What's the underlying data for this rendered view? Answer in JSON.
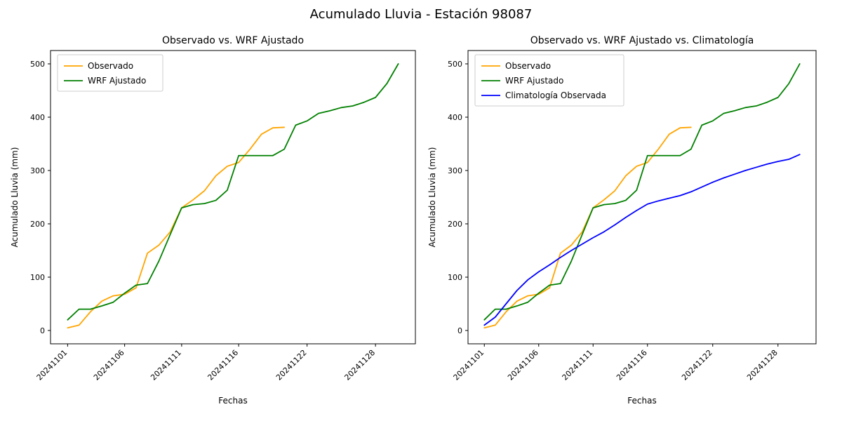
{
  "figure": {
    "suptitle": "Acumulado Lluvia - Estación 98087",
    "background_color": "#ffffff"
  },
  "chart_data": [
    {
      "type": "line",
      "title": "Observado vs. WRF Ajustado",
      "xlabel": "Fechas",
      "ylabel": "Acumulado Lluvia (mm)",
      "grid": false,
      "legend_position": "upper-left",
      "xlim": [
        -0.5,
        31.5
      ],
      "ylim": [
        -25,
        525
      ],
      "yticks": [
        0,
        100,
        200,
        300,
        400,
        500
      ],
      "xticks": [
        1,
        6,
        11,
        16,
        22,
        28
      ],
      "xtick_labels": [
        "20241101",
        "20241106",
        "20241111",
        "20241116",
        "20241122",
        "20241128"
      ],
      "series": [
        {
          "name": "Observado",
          "color": "#FFA500",
          "x": [
            1,
            2,
            3,
            4,
            5,
            6,
            7,
            8,
            9,
            10,
            11,
            12,
            13,
            14,
            15,
            16,
            17,
            18,
            19,
            20
          ],
          "y": [
            5,
            10,
            35,
            55,
            65,
            68,
            80,
            145,
            160,
            185,
            230,
            245,
            262,
            290,
            308,
            315,
            340,
            368,
            380,
            381
          ]
        },
        {
          "name": "WRF Ajustado",
          "color": "#008000",
          "x": [
            1,
            2,
            3,
            4,
            5,
            6,
            7,
            8,
            9,
            10,
            11,
            12,
            13,
            14,
            15,
            16,
            17,
            18,
            19,
            20,
            21,
            22,
            23,
            24,
            25,
            26,
            27,
            28,
            29,
            30
          ],
          "y": [
            20,
            40,
            40,
            46,
            53,
            70,
            85,
            88,
            130,
            180,
            230,
            236,
            238,
            244,
            263,
            328,
            328,
            328,
            328,
            340,
            385,
            393,
            407,
            412,
            418,
            421,
            428,
            437,
            463,
            500
          ]
        }
      ]
    },
    {
      "type": "line",
      "title": "Observado vs. WRF Ajustado vs. Climatología",
      "xlabel": "Fechas",
      "ylabel": "Acumulado Lluvia (mm)",
      "grid": false,
      "legend_position": "upper-left",
      "xlim": [
        -0.5,
        31.5
      ],
      "ylim": [
        -25,
        525
      ],
      "yticks": [
        0,
        100,
        200,
        300,
        400,
        500
      ],
      "xticks": [
        1,
        6,
        11,
        16,
        22,
        28
      ],
      "xtick_labels": [
        "20241101",
        "20241106",
        "20241111",
        "20241116",
        "20241122",
        "20241128"
      ],
      "series": [
        {
          "name": "Observado",
          "color": "#FFA500",
          "x": [
            1,
            2,
            3,
            4,
            5,
            6,
            7,
            8,
            9,
            10,
            11,
            12,
            13,
            14,
            15,
            16,
            17,
            18,
            19,
            20
          ],
          "y": [
            5,
            10,
            35,
            55,
            65,
            68,
            80,
            145,
            160,
            185,
            230,
            245,
            262,
            290,
            308,
            315,
            340,
            368,
            380,
            381
          ]
        },
        {
          "name": "WRF Ajustado",
          "color": "#008000",
          "x": [
            1,
            2,
            3,
            4,
            5,
            6,
            7,
            8,
            9,
            10,
            11,
            12,
            13,
            14,
            15,
            16,
            17,
            18,
            19,
            20,
            21,
            22,
            23,
            24,
            25,
            26,
            27,
            28,
            29,
            30
          ],
          "y": [
            20,
            40,
            40,
            46,
            53,
            70,
            85,
            88,
            130,
            180,
            230,
            236,
            238,
            244,
            263,
            328,
            328,
            328,
            328,
            340,
            385,
            393,
            407,
            412,
            418,
            421,
            428,
            437,
            463,
            500
          ]
        },
        {
          "name": "Climatología Observada",
          "color": "#0000FF",
          "x": [
            1,
            2,
            3,
            4,
            5,
            6,
            7,
            8,
            9,
            10,
            11,
            12,
            13,
            14,
            15,
            16,
            17,
            18,
            19,
            20,
            21,
            22,
            23,
            24,
            25,
            26,
            27,
            28,
            29,
            30
          ],
          "y": [
            10,
            25,
            50,
            75,
            95,
            110,
            123,
            137,
            150,
            162,
            174,
            185,
            198,
            212,
            225,
            237,
            243,
            248,
            253,
            260,
            269,
            278,
            286,
            293,
            300,
            306,
            312,
            317,
            321,
            330
          ]
        }
      ]
    }
  ]
}
